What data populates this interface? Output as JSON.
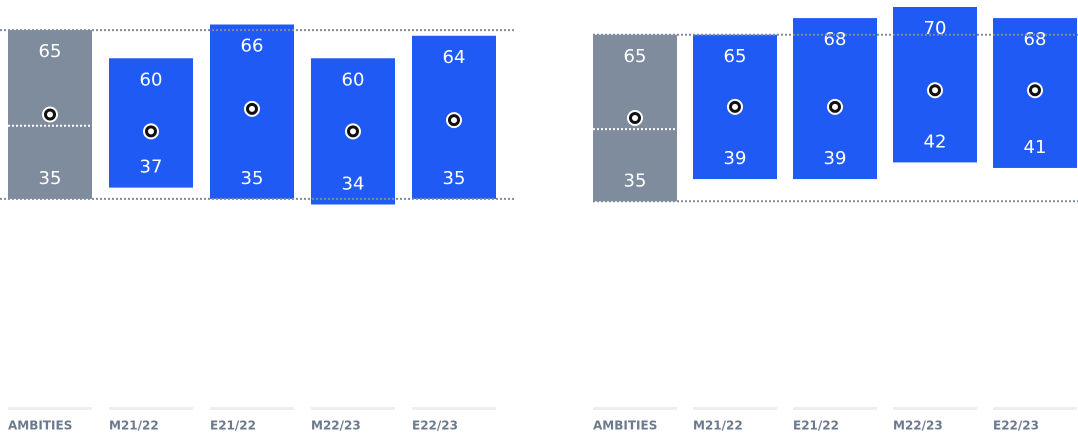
{
  "chart_data": [
    {
      "type": "range_bar",
      "categories": [
        "AMBITIES",
        "M21/22",
        "E21/22",
        "M22/23",
        "E22/23"
      ],
      "highs": [
        65,
        60,
        66,
        60,
        64
      ],
      "lows": [
        35,
        37,
        35,
        34,
        35
      ],
      "dots": [
        50,
        47,
        51,
        47,
        49
      ],
      "colors": [
        "#7f8c9d",
        "#1f5af4",
        "#1f5af4",
        "#1f5af4",
        "#1f5af4"
      ],
      "reference_lines": [
        35,
        65
      ],
      "ambition_split": 48,
      "ylim": [
        30,
        70
      ]
    },
    {
      "type": "range_bar",
      "categories": [
        "AMBITIES",
        "M21/22",
        "E21/22",
        "M22/23",
        "E22/23"
      ],
      "highs": [
        65,
        65,
        68,
        70,
        68
      ],
      "lows": [
        35,
        39,
        39,
        42,
        41
      ],
      "dots": [
        50,
        52,
        52,
        55,
        55
      ],
      "colors": [
        "#7f8c9d",
        "#1f5af4",
        "#1f5af4",
        "#1f5af4",
        "#1f5af4"
      ],
      "reference_lines": [
        35,
        65
      ],
      "ambition_split": 48,
      "ylim": [
        30,
        70
      ]
    }
  ]
}
